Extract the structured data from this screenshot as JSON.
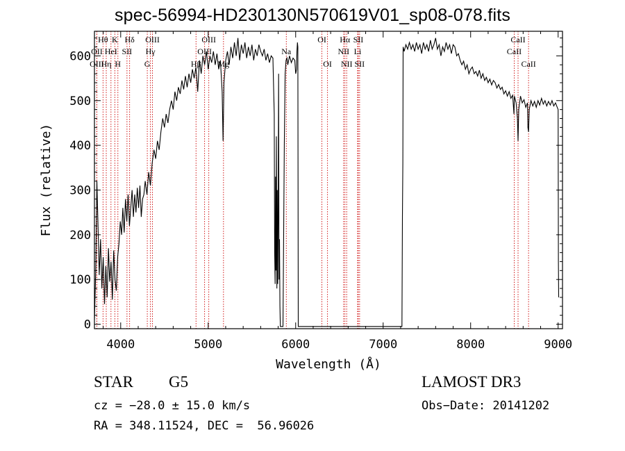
{
  "title": "spec-56994-HD230130N570619V01_sp08-078.fits",
  "info": {
    "class_label": "STAR",
    "subclass_label": "G5",
    "survey": "LAMOST DR3",
    "cz": "cz = −28.0 ± 15.0 km/s",
    "obs_date": "Obs−Date: 20141202",
    "coords": "RA = 348.11524, DEC =  56.96026"
  },
  "colors": {
    "spectrum": "#000000",
    "line_marker": "#cc0000"
  },
  "chart_data": {
    "type": "line",
    "xlabel": "Wavelength (Å)",
    "ylabel": "Flux (relative)",
    "xlim": [
      3700,
      9050
    ],
    "ylim": [
      -10,
      655
    ],
    "x_ticks": [
      4000,
      5000,
      6000,
      7000,
      8000,
      9000
    ],
    "y_ticks": [
      0,
      100,
      200,
      300,
      400,
      500,
      600
    ],
    "grid": false,
    "spectrum": [
      [
        3700,
        10
      ],
      [
        3715,
        120
      ],
      [
        3728,
        320
      ],
      [
        3740,
        230
      ],
      [
        3755,
        110
      ],
      [
        3770,
        190
      ],
      [
        3785,
        80
      ],
      [
        3800,
        150
      ],
      [
        3815,
        45
      ],
      [
        3830,
        130
      ],
      [
        3845,
        60
      ],
      [
        3860,
        170
      ],
      [
        3875,
        95
      ],
      [
        3890,
        140
      ],
      [
        3905,
        55
      ],
      [
        3920,
        165
      ],
      [
        3935,
        100
      ],
      [
        3950,
        75
      ],
      [
        3965,
        150
      ],
      [
        3980,
        180
      ],
      [
        3995,
        230
      ],
      [
        4010,
        200
      ],
      [
        4025,
        260
      ],
      [
        4040,
        205
      ],
      [
        4055,
        280
      ],
      [
        4070,
        230
      ],
      [
        4085,
        290
      ],
      [
        4100,
        220
      ],
      [
        4115,
        260
      ],
      [
        4130,
        300
      ],
      [
        4145,
        240
      ],
      [
        4160,
        290
      ],
      [
        4175,
        250
      ],
      [
        4190,
        305
      ],
      [
        4205,
        260
      ],
      [
        4220,
        310
      ],
      [
        4235,
        240
      ],
      [
        4250,
        280
      ],
      [
        4265,
        290
      ],
      [
        4280,
        320
      ],
      [
        4300,
        290
      ],
      [
        4320,
        340
      ],
      [
        4340,
        310
      ],
      [
        4360,
        360
      ],
      [
        4380,
        390
      ],
      [
        4400,
        370
      ],
      [
        4420,
        410
      ],
      [
        4440,
        390
      ],
      [
        4460,
        430
      ],
      [
        4480,
        460
      ],
      [
        4500,
        440
      ],
      [
        4520,
        470
      ],
      [
        4540,
        450
      ],
      [
        4560,
        480
      ],
      [
        4580,
        500
      ],
      [
        4600,
        480
      ],
      [
        4620,
        520
      ],
      [
        4640,
        500
      ],
      [
        4660,
        530
      ],
      [
        4680,
        515
      ],
      [
        4700,
        545
      ],
      [
        4720,
        525
      ],
      [
        4740,
        555
      ],
      [
        4760,
        530
      ],
      [
        4780,
        560
      ],
      [
        4800,
        540
      ],
      [
        4820,
        570
      ],
      [
        4840,
        550
      ],
      [
        4860,
        575
      ],
      [
        4880,
        520
      ],
      [
        4900,
        590
      ],
      [
        4920,
        560
      ],
      [
        4940,
        600
      ],
      [
        4960,
        580
      ],
      [
        4980,
        610
      ],
      [
        5000,
        570
      ],
      [
        5020,
        600
      ],
      [
        5040,
        585
      ],
      [
        5060,
        610
      ],
      [
        5080,
        580
      ],
      [
        5100,
        605
      ],
      [
        5120,
        570
      ],
      [
        5140,
        590
      ],
      [
        5160,
        520
      ],
      [
        5170,
        410
      ],
      [
        5180,
        540
      ],
      [
        5200,
        590
      ],
      [
        5220,
        610
      ],
      [
        5240,
        580
      ],
      [
        5260,
        620
      ],
      [
        5280,
        595
      ],
      [
        5300,
        630
      ],
      [
        5320,
        600
      ],
      [
        5340,
        640
      ],
      [
        5360,
        590
      ],
      [
        5380,
        625
      ],
      [
        5400,
        605
      ],
      [
        5420,
        630
      ],
      [
        5440,
        595
      ],
      [
        5460,
        620
      ],
      [
        5480,
        600
      ],
      [
        5500,
        625
      ],
      [
        5520,
        590
      ],
      [
        5540,
        615
      ],
      [
        5560,
        600
      ],
      [
        5580,
        625
      ],
      [
        5600,
        610
      ],
      [
        5620,
        600
      ],
      [
        5640,
        615
      ],
      [
        5660,
        590
      ],
      [
        5680,
        605
      ],
      [
        5700,
        585
      ],
      [
        5720,
        600
      ],
      [
        5740,
        595
      ],
      [
        5755,
        470
      ],
      [
        5760,
        160
      ],
      [
        5765,
        90
      ],
      [
        5770,
        330
      ],
      [
        5775,
        120
      ],
      [
        5780,
        420
      ],
      [
        5785,
        80
      ],
      [
        5790,
        300
      ],
      [
        5795,
        90
      ],
      [
        5800,
        250
      ],
      [
        5805,
        560
      ],
      [
        5810,
        100
      ],
      [
        5815,
        190
      ],
      [
        5820,
        40
      ],
      [
        5825,
        -5
      ],
      [
        5835,
        -5
      ],
      [
        5845,
        -5
      ],
      [
        5855,
        -5
      ],
      [
        5870,
        400
      ],
      [
        5880,
        560
      ],
      [
        5890,
        590
      ],
      [
        5900,
        595
      ],
      [
        5910,
        580
      ],
      [
        5930,
        600
      ],
      [
        5950,
        585
      ],
      [
        5970,
        595
      ],
      [
        5990,
        590
      ],
      [
        6000,
        560
      ],
      [
        6010,
        570
      ],
      [
        6015,
        610
      ],
      [
        6020,
        630
      ],
      [
        6025,
        620
      ],
      [
        6030,
        -5
      ],
      [
        6100,
        -5
      ],
      [
        6200,
        -5
      ],
      [
        6300,
        -5
      ],
      [
        6400,
        -5
      ],
      [
        6500,
        -5
      ],
      [
        6600,
        -5
      ],
      [
        6700,
        -5
      ],
      [
        6800,
        -5
      ],
      [
        6900,
        -5
      ],
      [
        7000,
        -5
      ],
      [
        7100,
        -5
      ],
      [
        7200,
        -5
      ],
      [
        7215,
        -5
      ],
      [
        7220,
        240
      ],
      [
        7225,
        360
      ],
      [
        7228,
        620
      ],
      [
        7240,
        610
      ],
      [
        7260,
        625
      ],
      [
        7280,
        615
      ],
      [
        7300,
        630
      ],
      [
        7320,
        615
      ],
      [
        7340,
        625
      ],
      [
        7360,
        610
      ],
      [
        7380,
        630
      ],
      [
        7400,
        615
      ],
      [
        7420,
        625
      ],
      [
        7440,
        605
      ],
      [
        7460,
        630
      ],
      [
        7480,
        615
      ],
      [
        7500,
        625
      ],
      [
        7520,
        610
      ],
      [
        7540,
        635
      ],
      [
        7560,
        615
      ],
      [
        7580,
        625
      ],
      [
        7600,
        640
      ],
      [
        7620,
        615
      ],
      [
        7640,
        625
      ],
      [
        7660,
        600
      ],
      [
        7680,
        620
      ],
      [
        7700,
        610
      ],
      [
        7720,
        630
      ],
      [
        7740,
        615
      ],
      [
        7760,
        625
      ],
      [
        7780,
        605
      ],
      [
        7800,
        625
      ],
      [
        7820,
        620
      ],
      [
        7840,
        600
      ],
      [
        7860,
        605
      ],
      [
        7880,
        590
      ],
      [
        7900,
        580
      ],
      [
        7920,
        588
      ],
      [
        7940,
        570
      ],
      [
        7960,
        580
      ],
      [
        7980,
        560
      ],
      [
        8000,
        570
      ],
      [
        8020,
        575
      ],
      [
        8040,
        560
      ],
      [
        8060,
        565
      ],
      [
        8080,
        555
      ],
      [
        8100,
        568
      ],
      [
        8120,
        550
      ],
      [
        8140,
        560
      ],
      [
        8160,
        545
      ],
      [
        8180,
        552
      ],
      [
        8200,
        540
      ],
      [
        8220,
        548
      ],
      [
        8240,
        535
      ],
      [
        8260,
        545
      ],
      [
        8280,
        540
      ],
      [
        8300,
        528
      ],
      [
        8320,
        536
      ],
      [
        8340,
        525
      ],
      [
        8360,
        530
      ],
      [
        8380,
        515
      ],
      [
        8400,
        522
      ],
      [
        8420,
        510
      ],
      [
        8440,
        520
      ],
      [
        8460,
        505
      ],
      [
        8480,
        512
      ],
      [
        8495,
        470
      ],
      [
        8500,
        510
      ],
      [
        8520,
        495
      ],
      [
        8535,
        460
      ],
      [
        8542,
        410
      ],
      [
        8550,
        480
      ],
      [
        8570,
        510
      ],
      [
        8590,
        495
      ],
      [
        8610,
        502
      ],
      [
        8630,
        485
      ],
      [
        8650,
        495
      ],
      [
        8655,
        440
      ],
      [
        8662,
        430
      ],
      [
        8670,
        480
      ],
      [
        8690,
        500
      ],
      [
        8710,
        488
      ],
      [
        8730,
        498
      ],
      [
        8750,
        485
      ],
      [
        8770,
        500
      ],
      [
        8790,
        490
      ],
      [
        8810,
        505
      ],
      [
        8830,
        492
      ],
      [
        8850,
        500
      ],
      [
        8870,
        488
      ],
      [
        8890,
        498
      ],
      [
        8910,
        490
      ],
      [
        8930,
        500
      ],
      [
        8950,
        488
      ],
      [
        8970,
        495
      ],
      [
        8990,
        485
      ],
      [
        9000,
        480
      ],
      [
        9003,
        140
      ],
      [
        9006,
        60
      ]
    ],
    "line_markers": [
      {
        "label": "Hθ",
        "x": 3798,
        "row": 1
      },
      {
        "label": "OII",
        "x": 3727,
        "row": 2
      },
      {
        "label": "OIII",
        "x": 3727,
        "row": 3
      },
      {
        "label": "K",
        "x": 3933,
        "row": 1
      },
      {
        "label": "HeI",
        "x": 3889,
        "row": 2
      },
      {
        "label": "Hη",
        "x": 3835,
        "row": 3
      },
      {
        "label": "Hδ",
        "x": 4102,
        "row": 1
      },
      {
        "label": "SII",
        "x": 4072,
        "row": 2
      },
      {
        "label": "H",
        "x": 3968,
        "row": 3
      },
      {
        "label": "OIII",
        "x": 4363,
        "row": 1
      },
      {
        "label": "Hγ",
        "x": 4340,
        "row": 2
      },
      {
        "label": "G",
        "x": 4304,
        "row": 3
      },
      {
        "label": "OIII",
        "x": 5007,
        "row": 1
      },
      {
        "label": "OIII",
        "x": 4959,
        "row": 2
      },
      {
        "label": "Hβ",
        "x": 4861,
        "row": 3
      },
      {
        "label": "Mg",
        "x": 5175,
        "row": 3
      },
      {
        "label": "Na",
        "x": 5893,
        "row": 2
      },
      {
        "label": "OI",
        "x": 6300,
        "row": 1
      },
      {
        "label": "OI",
        "x": 6364,
        "row": 3
      },
      {
        "label": "Hα",
        "x": 6563,
        "row": 1
      },
      {
        "label": "NII",
        "x": 6548,
        "row": 2
      },
      {
        "label": "NII",
        "x": 6583,
        "row": 3
      },
      {
        "label": "SII",
        "x": 6716,
        "row": 1
      },
      {
        "label": "Li",
        "x": 6708,
        "row": 2
      },
      {
        "label": "SII",
        "x": 6731,
        "row": 3
      },
      {
        "label": "CaII",
        "x": 8542,
        "row": 1
      },
      {
        "label": "CaII",
        "x": 8498,
        "row": 2
      },
      {
        "label": "CaII",
        "x": 8662,
        "row": 3
      }
    ]
  }
}
